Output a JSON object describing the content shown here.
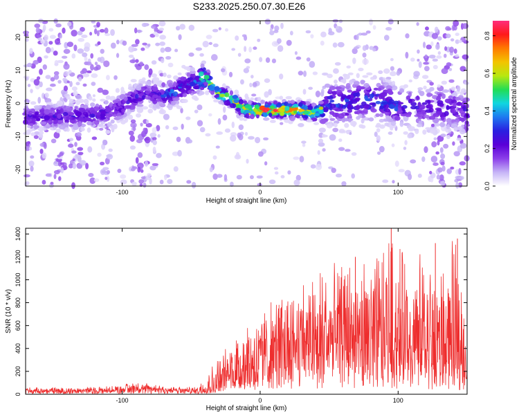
{
  "title": "S233.2025.250.07.30.E26",
  "colors": {
    "background": "#ffffff",
    "axis": "#000000",
    "snr_line": "#ee2d2d",
    "colormap": [
      "#ffffff",
      "#c6b4f7",
      "#8b3fe9",
      "#5a00d8",
      "#2a1fe0",
      "#1e78f0",
      "#10d6e0",
      "#22dd55",
      "#b8e810",
      "#f3c400",
      "#ff7a00",
      "#ff1a1a",
      "#ff2e7c"
    ]
  },
  "chart_data": [
    {
      "type": "heatmap",
      "xlabel": "Height of straight line (km)",
      "ylabel": "Frequency (Hz)",
      "xlim": [
        -170,
        150
      ],
      "ylim": [
        -25,
        25
      ],
      "xticks": [
        -100,
        0,
        100
      ],
      "yticks": [
        -20,
        -10,
        0,
        10,
        20
      ],
      "colorbar": {
        "label": "Normalized spectral amplitude",
        "range": [
          0,
          0.88
        ],
        "ticks": [
          "0.0",
          "0.2",
          "0.4",
          "0.6",
          "0.8"
        ]
      },
      "ridge": {
        "description_points_x": [
          -150,
          -130,
          -110,
          -100,
          -90,
          -80,
          -70,
          -60,
          -50,
          -40,
          -30,
          -20,
          -10,
          0,
          10,
          20,
          30,
          40,
          50,
          60,
          70,
          80,
          90,
          100,
          110,
          120,
          130,
          140,
          150
        ],
        "center_freq_hz": [
          -4,
          -4,
          -3,
          -1,
          2,
          3,
          2,
          4,
          6,
          8,
          3,
          1,
          -2,
          -2,
          -2,
          -2,
          -2,
          -3,
          0,
          0,
          1,
          1,
          0,
          -1,
          -1,
          -1,
          -1,
          -2,
          -3
        ]
      }
    },
    {
      "type": "line",
      "xlabel": "Height of straight line (km)",
      "ylabel": "SNR (10 * v/v)",
      "xlim": [
        -170,
        150
      ],
      "ylim": [
        0,
        1450
      ],
      "xticks": [
        -100,
        0,
        100
      ],
      "yticks": [
        0,
        200,
        400,
        600,
        800,
        1000,
        1200,
        1400
      ],
      "series": [
        {
          "name": "SNR",
          "envelope_x": [
            -170,
            -140,
            -110,
            -100,
            -90,
            -70,
            -55,
            -45,
            -35,
            -25,
            -15,
            0,
            10,
            20,
            30,
            40,
            50,
            60,
            70,
            80,
            90,
            95,
            100,
            110,
            120,
            130,
            140,
            150
          ],
          "envelope_mean": [
            30,
            30,
            30,
            40,
            50,
            40,
            30,
            30,
            70,
            150,
            220,
            320,
            380,
            420,
            440,
            430,
            450,
            480,
            470,
            450,
            470,
            500,
            480,
            430,
            400,
            380,
            350,
            330
          ],
          "envelope_peak": [
            60,
            60,
            70,
            90,
            110,
            80,
            60,
            70,
            250,
            400,
            600,
            750,
            820,
            900,
            980,
            1080,
            1150,
            1150,
            1180,
            1220,
            1300,
            1450,
            1280,
            1270,
            1250,
            1150,
            1360,
            1040
          ],
          "peaks": [
            {
              "x": 95,
              "y": 1450
            },
            {
              "x": 143,
              "y": 1360
            },
            {
              "x": 127,
              "y": 1320
            },
            {
              "x": 69,
              "y": 1200
            },
            {
              "x": 150,
              "y": 1040
            }
          ]
        }
      ]
    }
  ]
}
